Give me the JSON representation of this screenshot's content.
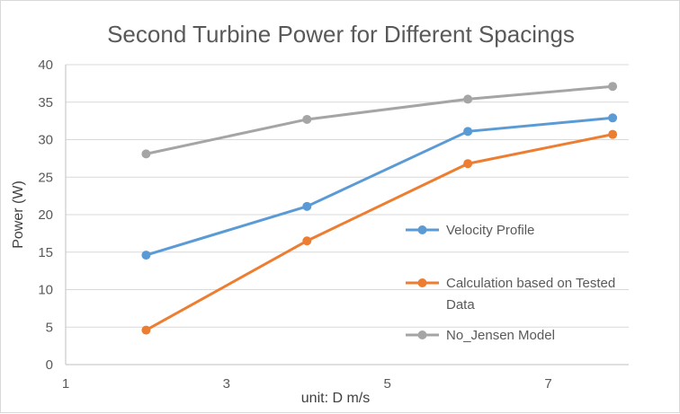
{
  "chart_data": {
    "type": "scatter",
    "title": "Second Turbine Power for Different Spacings",
    "xlabel": "unit: D m/s",
    "ylabel": "Power (W)",
    "xlim": [
      1,
      8
    ],
    "ylim": [
      0,
      40
    ],
    "xticks": [
      1,
      3,
      5,
      7
    ],
    "yticks": [
      0,
      5,
      10,
      15,
      20,
      25,
      30,
      35,
      40
    ],
    "grid": "horizontal",
    "legend_position": "right",
    "series": [
      {
        "name": "Velocity Profile",
        "color": "#5b9bd5",
        "x": [
          2,
          4,
          6,
          7.8
        ],
        "y": [
          14.6,
          21.1,
          31.1,
          32.9
        ]
      },
      {
        "name": "Calculation based on Tested Data",
        "legend_lines": [
          "Calculation based on Tested",
          "Data"
        ],
        "color": "#ed7d31",
        "x": [
          2,
          4,
          6,
          7.8
        ],
        "y": [
          4.6,
          16.5,
          26.8,
          30.7
        ]
      },
      {
        "name": "No_Jensen Model",
        "color": "#a5a5a5",
        "x": [
          2,
          4,
          6,
          7.8
        ],
        "y": [
          28.1,
          32.7,
          35.4,
          37.1
        ]
      }
    ]
  }
}
